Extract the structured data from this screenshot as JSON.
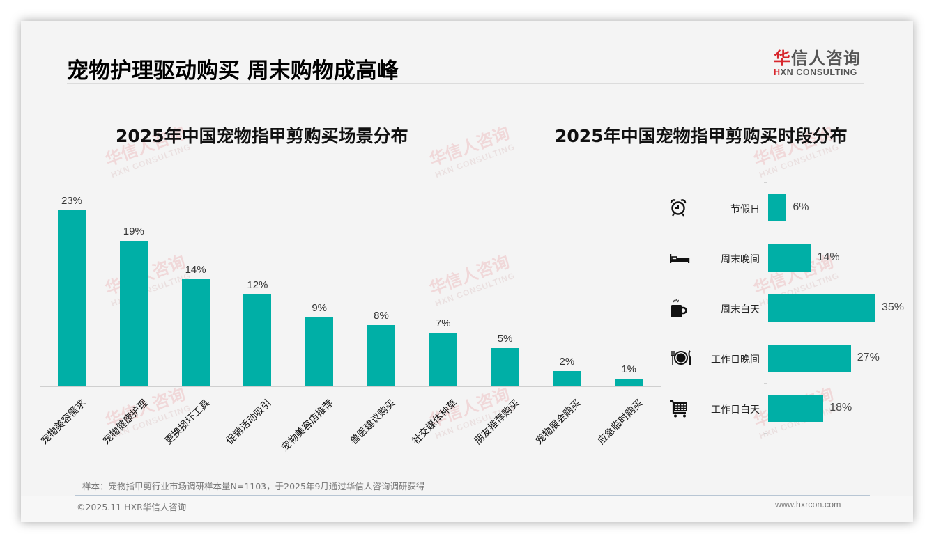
{
  "header": {
    "title": "宠物护理驱动购买 周末购物成高峰",
    "logo_cn_red": "华",
    "logo_cn_rest": "信人咨询",
    "logo_en_red": "H",
    "logo_en_rest": "XN CONSULTING"
  },
  "colors": {
    "bar": "#00afa6",
    "brand_red": "#d7262c",
    "background": "#f4f4f4"
  },
  "watermark": {
    "cn": "华信人咨询",
    "en": "HXN CONSULTING"
  },
  "left_chart": {
    "title": "2025年中国宠物指甲剪购买场景分布"
  },
  "right_chart": {
    "title": "2025年中国宠物指甲剪购买时段分布",
    "icons": [
      "alarm-clock-icon",
      "bed-icon",
      "coffee-mug-icon",
      "plate-cutlery-icon",
      "shopping-cart-icon"
    ]
  },
  "chart_data": [
    {
      "type": "bar",
      "title": "2025年中国宠物指甲剪购买场景分布",
      "categories": [
        "宠物美容需求",
        "宠物健康护理",
        "更换损坏工具",
        "促销活动吸引",
        "宠物美容店推荐",
        "兽医建议购买",
        "社交媒体种草",
        "朋友推荐购买",
        "宠物展会购买",
        "应急临时购买"
      ],
      "values": [
        23,
        19,
        14,
        12,
        9,
        8,
        7,
        5,
        2,
        1
      ],
      "value_labels": [
        "23%",
        "19%",
        "14%",
        "12%",
        "9%",
        "8%",
        "7%",
        "5%",
        "2%",
        "1%"
      ],
      "unit": "%",
      "xlabel": "",
      "ylabel": "",
      "ylim": [
        0,
        25
      ],
      "grid": false,
      "legend": "none",
      "x_tick_rotation": -45
    },
    {
      "type": "bar",
      "orientation": "horizontal",
      "title": "2025年中国宠物指甲剪购买时段分布",
      "categories": [
        "节假日",
        "周末晚间",
        "周末白天",
        "工作日晚间",
        "工作日白天"
      ],
      "values": [
        6,
        14,
        35,
        27,
        18
      ],
      "value_labels": [
        "6%",
        "14%",
        "35%",
        "27%",
        "18%"
      ],
      "unit": "%",
      "xlabel": "",
      "ylabel": "",
      "xlim": [
        0,
        40
      ],
      "grid": false,
      "legend": "none"
    }
  ],
  "footer": {
    "note": "样本：宠物指甲剪行业市场调研样本量N=1103，于2025年9月通过华信人咨询调研获得",
    "copyright": "©2025.11 HXR华信人咨询",
    "website": "www.hxrcon.com"
  }
}
